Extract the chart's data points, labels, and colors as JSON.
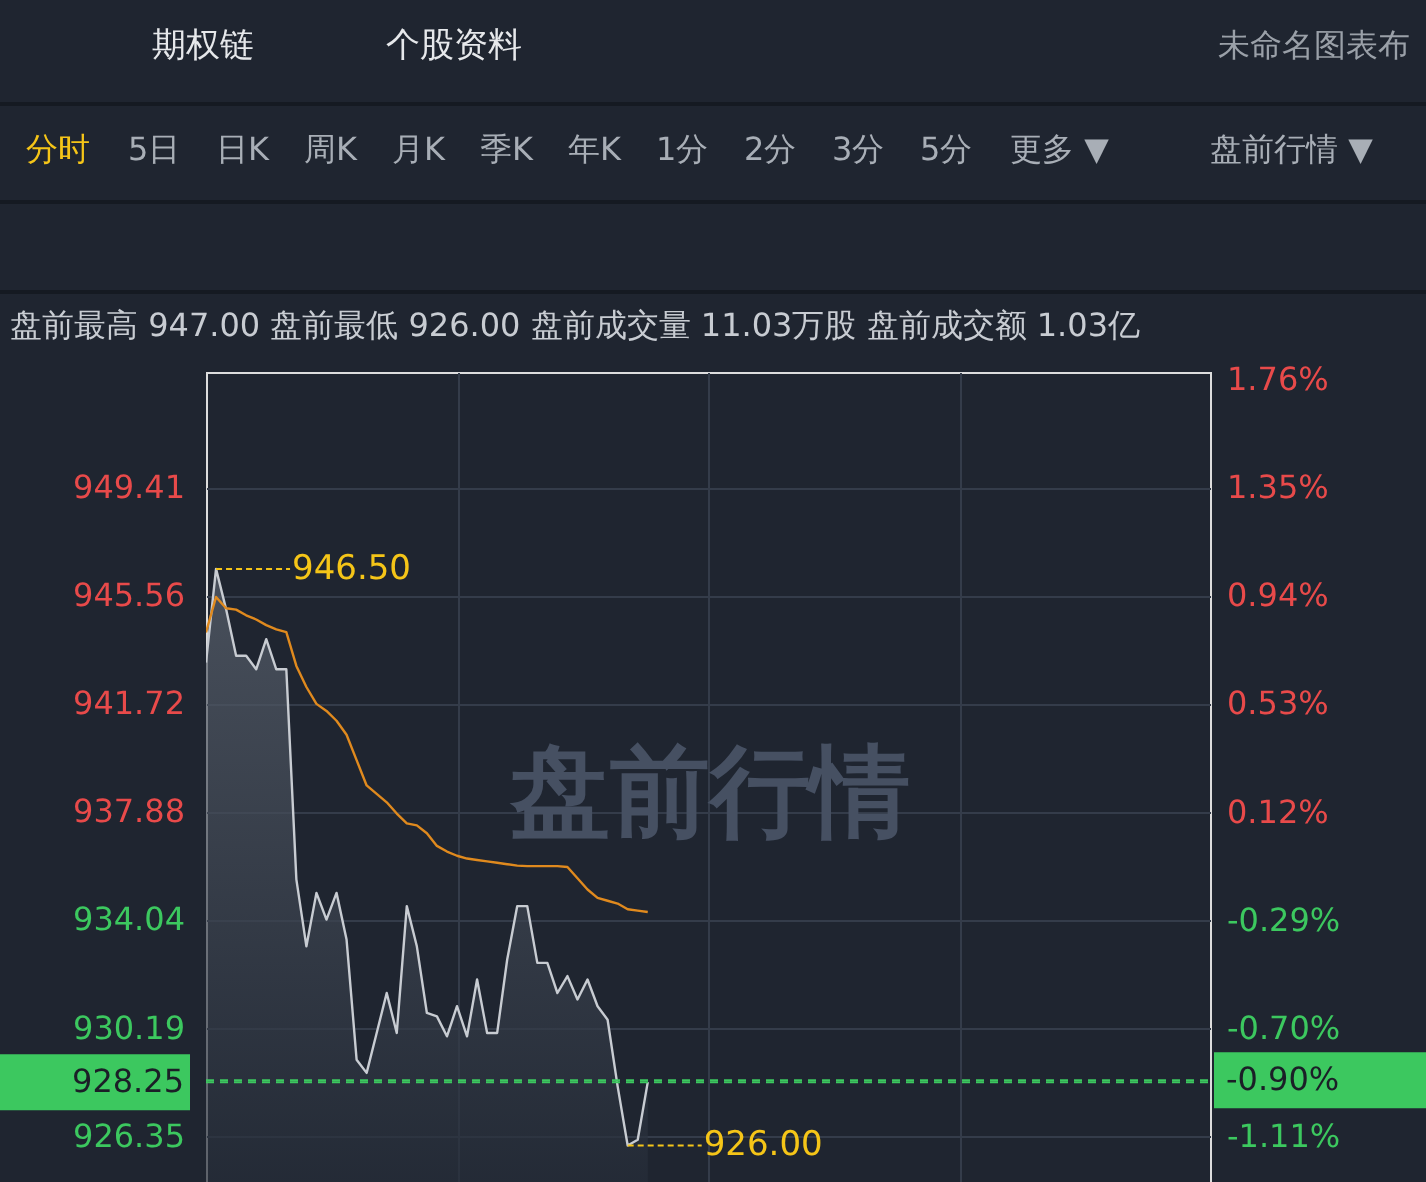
{
  "chart_data": {
    "type": "area",
    "title": "盘前最高 947.00 盘前最低 926.00 盘前成交量 11.03万股 盘前成交额 1.03亿",
    "categories": [
      null,
      null,
      null,
      null,
      null,
      null,
      null,
      null,
      null,
      null,
      null,
      null,
      null,
      null,
      null,
      null,
      null,
      null,
      null,
      null,
      null,
      null,
      null,
      null,
      null,
      null,
      null,
      null,
      null,
      null,
      null,
      null,
      null,
      null,
      null,
      null,
      null,
      null,
      null,
      null,
      null,
      null,
      null,
      null,
      null,
      null,
      null,
      null,
      null,
      null,
      null,
      null,
      null,
      null,
      null,
      null,
      null,
      null,
      null,
      null,
      null,
      null,
      null,
      null,
      null,
      null,
      null,
      null,
      null,
      null,
      null,
      null,
      null,
      null,
      null,
      null,
      null,
      null,
      null,
      null,
      null,
      null,
      null,
      null,
      null,
      null,
      null,
      null,
      null,
      null,
      null,
      null,
      null,
      null,
      null,
      null,
      null,
      null,
      null,
      null,
      null
    ],
    "ylim": [
      924.7,
      953.5
    ],
    "yticks": [
      949.41,
      945.56,
      941.72,
      937.88,
      934.04,
      930.19,
      926.35
    ],
    "y2lim": [
      -1.286,
      1.788
    ],
    "y2ticks": [
      {
        "value": 1.76,
        "label": "1.76%"
      },
      {
        "value": 1.35,
        "label": "1.35%"
      },
      {
        "value": 0.94,
        "label": "0.94%"
      },
      {
        "value": 0.53,
        "label": "0.53%"
      },
      {
        "value": 0.12,
        "label": "0.12%"
      },
      {
        "value": -0.29,
        "label": "-0.29%"
      },
      {
        "value": -0.7,
        "label": "-0.70%"
      },
      {
        "value": -1.11,
        "label": "-1.11%"
      }
    ],
    "tick_labels": "y",
    "grid": true,
    "series": [
      {
        "color": "#c8ccd2",
        "values": [
          943.17,
          946.5,
          945.07,
          943.41,
          943.41,
          942.93,
          944.0,
          942.93,
          942.93,
          935.46,
          933.08,
          934.98,
          934.03,
          934.98,
          933.32,
          929.05,
          928.58,
          930.0,
          931.42,
          930.0,
          934.51,
          933.08,
          930.71,
          930.59,
          929.88,
          930.95,
          929.88,
          931.9,
          930.0,
          930.0,
          932.61,
          934.51,
          934.51,
          932.49,
          932.49,
          931.42,
          932.02,
          931.19,
          931.9,
          930.95,
          930.47,
          928.1,
          926.0,
          926.2,
          928.25,
          null,
          null,
          null,
          null,
          null,
          null,
          null,
          null,
          null,
          null,
          null,
          null,
          null,
          null,
          null,
          null,
          null,
          null,
          null,
          null,
          null,
          null,
          null,
          null,
          null,
          null,
          null,
          null,
          null,
          null,
          null,
          null,
          null,
          null,
          null,
          null,
          null,
          null,
          null,
          null,
          null,
          null,
          null,
          null,
          null,
          null,
          null,
          null,
          null,
          null,
          null,
          null,
          null,
          null,
          null,
          null
        ]
      },
      {
        "type": "line",
        "color": "#e08a1e",
        "values": [
          944.24,
          945.5,
          945.1,
          945.05,
          944.85,
          944.7,
          944.5,
          944.35,
          944.25,
          943.05,
          942.3,
          941.7,
          941.45,
          941.1,
          940.6,
          939.7,
          938.8,
          938.5,
          938.2,
          937.8,
          937.45,
          937.38,
          937.1,
          936.65,
          936.45,
          936.3,
          936.2,
          936.15,
          936.1,
          936.05,
          936.0,
          935.95,
          935.93,
          935.93,
          935.93,
          935.93,
          935.9,
          935.5,
          935.1,
          934.8,
          934.7,
          934.6,
          934.4,
          934.35,
          934.3,
          null,
          null,
          null,
          null,
          null,
          null,
          null,
          null,
          null,
          null,
          null,
          null,
          null,
          null,
          null,
          null,
          null,
          null,
          null,
          null,
          null,
          null,
          null,
          null,
          null,
          null,
          null,
          null,
          null,
          null,
          null,
          null,
          null,
          null,
          null,
          null,
          null,
          null,
          null,
          null,
          null,
          null,
          null,
          null,
          null,
          null,
          null,
          null,
          null,
          null,
          null,
          null,
          null,
          null,
          null,
          null
        ]
      }
    ],
    "ref_lines": [
      {
        "axis": "y",
        "value": 928.25,
        "label": "928.25",
        "color": "#3cc85f",
        "line_style": "dashed"
      },
      {
        "axis": "y2",
        "value": -0.9,
        "label": "-0.90%",
        "color": "#3cc85f",
        "line_style": "dashed"
      }
    ],
    "annotations": [
      "期权链",
      "个股资料",
      "未命名图表布",
      "分时",
      "5日",
      "日K",
      "周K",
      "月K",
      "季K",
      "年K",
      "1分",
      "2分",
      "3分",
      "5分",
      "更多 ▼",
      "盘前行情 ▼",
      "盘前行情",
      "946.50",
      "926.00"
    ]
  }
}
